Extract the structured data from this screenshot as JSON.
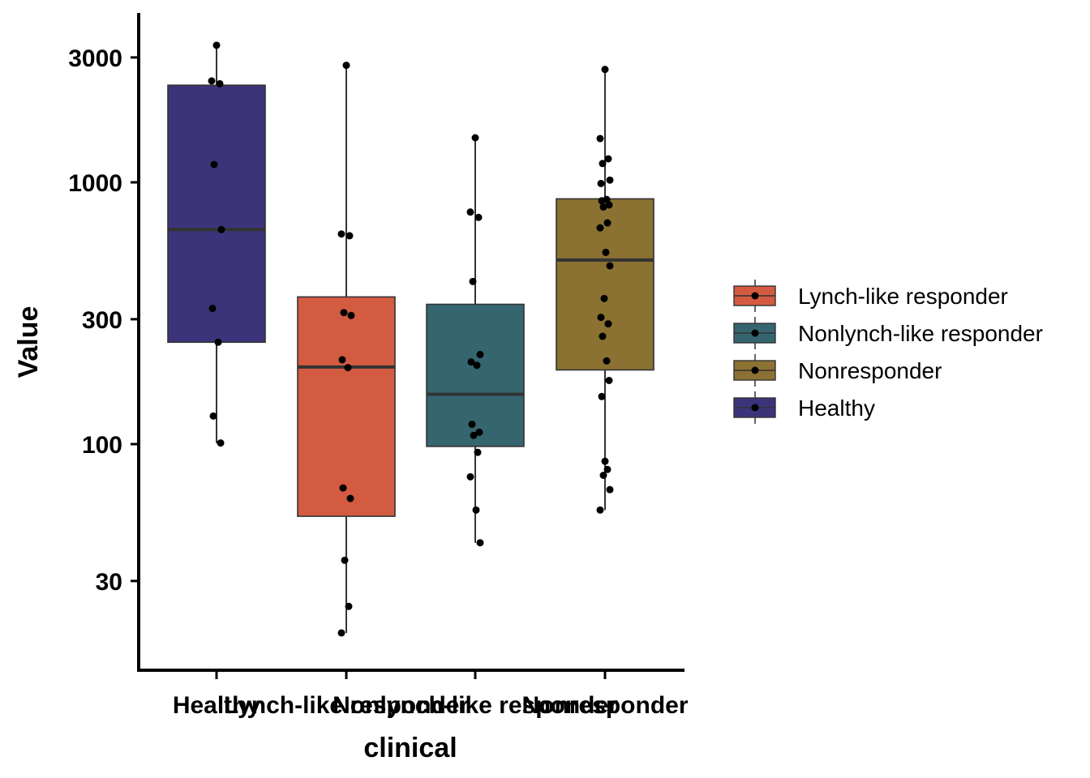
{
  "chart_data": {
    "type": "box",
    "xlabel": "clinical",
    "ylabel": "Value",
    "yscale": "log",
    "ylim": [
      16,
      4200
    ],
    "yticks": [
      30,
      100,
      300,
      1000,
      3000
    ],
    "grid": false,
    "legend_position": "right",
    "categories": [
      "Healthy",
      "Lynch-like responder",
      "Nonlynch-like responder",
      "Nonresponder"
    ],
    "legend": [
      "Lynch-like responder",
      "Nonlynch-like responder",
      "Nonresponder",
      "Healthy"
    ],
    "colors": {
      "Lynch-like responder": "#D35B41",
      "Nonlynch-like responder": "#356670",
      "Nonresponder": "#8B7132",
      "Healthy": "#3C347A"
    },
    "boxes": [
      {
        "group": "Healthy",
        "whisker_low": 101,
        "q1": 245,
        "median": 660,
        "q3": 2350,
        "whisker_high": 3340
      },
      {
        "group": "Lynch-like responder",
        "whisker_low": 19,
        "q1": 53,
        "median": 197,
        "q3": 365,
        "whisker_high": 2800
      },
      {
        "group": "Nonlynch-like responder",
        "whisker_low": 42,
        "q1": 98,
        "median": 155,
        "q3": 342,
        "whisker_high": 1480
      },
      {
        "group": "Nonresponder",
        "whisker_low": 56,
        "q1": 192,
        "median": 505,
        "q3": 865,
        "whisker_high": 2700
      }
    ],
    "points": [
      {
        "group": "Healthy",
        "values": [
          3340,
          2440,
          2380,
          1170,
          660,
          330,
          245,
          128,
          101
        ]
      },
      {
        "group": "Lynch-like responder",
        "values": [
          2800,
          635,
          625,
          318,
          310,
          210,
          196,
          68,
          62,
          36,
          24,
          19
        ]
      },
      {
        "group": "Nonlynch-like responder",
        "values": [
          1480,
          770,
          735,
          418,
          220,
          206,
          200,
          119,
          111,
          108,
          93,
          75,
          56,
          42
        ]
      },
      {
        "group": "Nonresponder",
        "values": [
          2700,
          1470,
          1230,
          1180,
          1020,
          990,
          860,
          850,
          820,
          805,
          700,
          670,
          540,
          480,
          360,
          305,
          288,
          258,
          208,
          175,
          152,
          86,
          80,
          76,
          67,
          56
        ]
      }
    ]
  }
}
